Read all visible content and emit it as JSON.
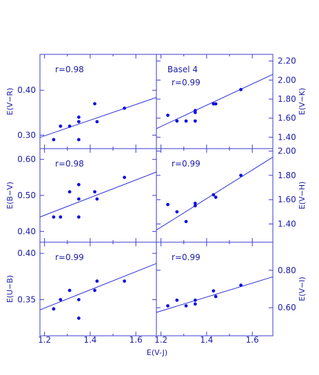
{
  "chart_data": {
    "type": "scatter",
    "xlabel": "E(V-J)",
    "x_ticks": [
      "1.2",
      "1.4",
      "1.6",
      "1.2",
      "1.4",
      "1.6"
    ],
    "xlim": [
      1.18,
      1.69
    ],
    "colors": {
      "axes": "#3a3ad0",
      "points": "#1010e0",
      "text": "#1a1aa8"
    },
    "panels": [
      {
        "id": "vr",
        "row": 0,
        "col": 0,
        "ylabel": "E(V−R)",
        "y_axis_side": "left",
        "ylim": [
          0.27,
          0.48
        ],
        "yticks": [
          {
            "v": 0.3,
            "t": "0.30"
          },
          {
            "v": 0.4,
            "t": "0.40"
          }
        ],
        "r_label": "r=0.98",
        "annotation": "",
        "points": [
          [
            1.24,
            0.29
          ],
          [
            1.27,
            0.32
          ],
          [
            1.31,
            0.32
          ],
          [
            1.35,
            0.33
          ],
          [
            1.35,
            0.34
          ],
          [
            1.35,
            0.29
          ],
          [
            1.42,
            0.37
          ],
          [
            1.43,
            0.33
          ],
          [
            1.55,
            0.36
          ]
        ],
        "fit": [
          [
            1.18,
            0.295
          ],
          [
            1.69,
            0.384
          ]
        ]
      },
      {
        "id": "vk",
        "row": 0,
        "col": 1,
        "ylabel": "E(V−K)",
        "y_axis_side": "right",
        "ylim": [
          1.28,
          2.27
        ],
        "yticks": [
          {
            "v": 1.4,
            "t": "1.40"
          },
          {
            "v": 1.6,
            "t": "1.60"
          },
          {
            "v": 1.8,
            "t": "1.80"
          },
          {
            "v": 2.0,
            "t": "2.00"
          },
          {
            "v": 2.2,
            "t": "2.20"
          }
        ],
        "r_label": "r=0.99",
        "annotation": "Basel 4",
        "points": [
          [
            1.23,
            1.63
          ],
          [
            1.27,
            1.57
          ],
          [
            1.31,
            1.57
          ],
          [
            1.35,
            1.57
          ],
          [
            1.35,
            1.66
          ],
          [
            1.35,
            1.68
          ],
          [
            1.43,
            1.75
          ],
          [
            1.44,
            1.75
          ],
          [
            1.55,
            1.9
          ]
        ],
        "fit": [
          [
            1.18,
            1.49
          ],
          [
            1.69,
            2.06
          ]
        ]
      },
      {
        "id": "bv",
        "row": 1,
        "col": 0,
        "ylabel": "E(B−V)",
        "y_axis_side": "left",
        "ylim": [
          0.37,
          0.63
        ],
        "yticks": [
          {
            "v": 0.4,
            "t": "0.40"
          },
          {
            "v": 0.5,
            "t": "0.50"
          },
          {
            "v": 0.6,
            "t": "0.60"
          }
        ],
        "r_label": "r=0.98",
        "annotation": "",
        "points": [
          [
            1.24,
            0.44
          ],
          [
            1.27,
            0.44
          ],
          [
            1.31,
            0.51
          ],
          [
            1.35,
            0.53
          ],
          [
            1.35,
            0.49
          ],
          [
            1.35,
            0.44
          ],
          [
            1.42,
            0.51
          ],
          [
            1.43,
            0.49
          ],
          [
            1.55,
            0.55
          ]
        ],
        "fit": [
          [
            1.18,
            0.44
          ],
          [
            1.69,
            0.565
          ]
        ]
      },
      {
        "id": "vh",
        "row": 1,
        "col": 1,
        "ylabel": "E(V−H)",
        "y_axis_side": "right",
        "ylim": [
          1.25,
          2.02
        ],
        "yticks": [
          {
            "v": 1.4,
            "t": "1.40"
          },
          {
            "v": 1.6,
            "t": "1.60"
          },
          {
            "v": 1.8,
            "t": "1.80"
          },
          {
            "v": 2.0,
            "t": "2.00"
          }
        ],
        "r_label": "r=0.99",
        "annotation": "",
        "points": [
          [
            1.23,
            1.56
          ],
          [
            1.27,
            1.5
          ],
          [
            1.31,
            1.42
          ],
          [
            1.35,
            1.55
          ],
          [
            1.35,
            1.57
          ],
          [
            1.43,
            1.64
          ],
          [
            1.44,
            1.62
          ],
          [
            1.55,
            1.8
          ]
        ],
        "fit": [
          [
            1.18,
            1.35
          ],
          [
            1.69,
            1.95
          ]
        ]
      },
      {
        "id": "ub",
        "row": 2,
        "col": 0,
        "ylabel": "E(U−B)",
        "y_axis_side": "left",
        "ylim": [
          0.311,
          0.412
        ],
        "yticks": [
          {
            "v": 0.35,
            "t": "0.35"
          },
          {
            "v": 0.4,
            "t": "0.40"
          }
        ],
        "r_label": "r=0.99",
        "annotation": "",
        "points": [
          [
            1.24,
            0.34
          ],
          [
            1.27,
            0.35
          ],
          [
            1.31,
            0.36
          ],
          [
            1.35,
            0.35
          ],
          [
            1.35,
            0.33
          ],
          [
            1.42,
            0.36
          ],
          [
            1.43,
            0.37
          ],
          [
            1.55,
            0.37
          ]
        ],
        "fit": [
          [
            1.18,
            0.339
          ],
          [
            1.69,
            0.389
          ]
        ]
      },
      {
        "id": "vi",
        "row": 2,
        "col": 1,
        "ylabel": "E(V−I)",
        "y_axis_side": "right",
        "ylim": [
          0.45,
          0.95
        ],
        "yticks": [
          {
            "v": 0.6,
            "t": "0.60"
          },
          {
            "v": 0.8,
            "t": "0.80"
          }
        ],
        "r_label": "r=0.99",
        "annotation": "",
        "points": [
          [
            1.23,
            0.61
          ],
          [
            1.27,
            0.64
          ],
          [
            1.31,
            0.61
          ],
          [
            1.35,
            0.62
          ],
          [
            1.35,
            0.64
          ],
          [
            1.43,
            0.69
          ],
          [
            1.44,
            0.66
          ],
          [
            1.55,
            0.72
          ]
        ],
        "fit": [
          [
            1.18,
            0.575
          ],
          [
            1.69,
            0.765
          ]
        ]
      }
    ]
  }
}
